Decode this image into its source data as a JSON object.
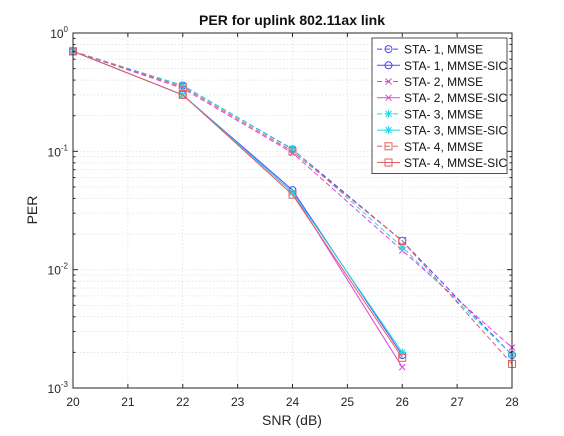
{
  "chart_data": {
    "type": "line",
    "title": "PER for uplink 802.11ax link",
    "xlabel": "SNR (dB)",
    "ylabel": "PER",
    "xlim": [
      20,
      28
    ],
    "ylim": [
      0.001,
      1
    ],
    "yscale": "log",
    "grid": true,
    "legend_position": "top-right",
    "x_ticks": [
      "20",
      "21",
      "22",
      "23",
      "24",
      "25",
      "26",
      "27",
      "28"
    ],
    "y_ticks": [
      {
        "value": 0.001,
        "base": "10",
        "exp": "-3"
      },
      {
        "value": 0.01,
        "base": "10",
        "exp": "-2"
      },
      {
        "value": 0.1,
        "base": "10",
        "exp": "-1"
      },
      {
        "value": 1,
        "base": "10",
        "exp": "0"
      }
    ],
    "series": [
      {
        "name": "STA- 1, MMSE",
        "color": "#4a4af0",
        "dash": "dashed",
        "marker": "circle",
        "x": [
          20,
          22,
          24,
          26,
          28
        ],
        "y": [
          0.7,
          0.36,
          0.104,
          0.0175,
          0.0019
        ]
      },
      {
        "name": "STA- 1, MMSE-SIC",
        "color": "#4a4af0",
        "dash": "solid",
        "marker": "circle",
        "x": [
          20,
          22,
          24,
          26
        ],
        "y": [
          0.7,
          0.3,
          0.047,
          0.0019
        ]
      },
      {
        "name": "STA- 2, MMSE",
        "color": "#e040e0",
        "dash": "dashed",
        "marker": "x",
        "x": [
          20,
          22,
          24,
          26,
          28
        ],
        "y": [
          0.7,
          0.34,
          0.097,
          0.0145,
          0.0022
        ]
      },
      {
        "name": "STA- 2, MMSE-SIC",
        "color": "#e040e0",
        "dash": "solid",
        "marker": "x",
        "x": [
          20,
          22,
          24,
          26
        ],
        "y": [
          0.7,
          0.3,
          0.045,
          0.0015
        ]
      },
      {
        "name": "STA- 3, MMSE",
        "color": "#22d8e8",
        "dash": "dashed",
        "marker": "star",
        "x": [
          20,
          22,
          24,
          26,
          28
        ],
        "y": [
          0.7,
          0.36,
          0.105,
          0.0155,
          0.0019
        ]
      },
      {
        "name": "STA- 3, MMSE-SIC",
        "color": "#22d8e8",
        "dash": "solid",
        "marker": "star",
        "x": [
          20,
          22,
          24,
          26
        ],
        "y": [
          0.7,
          0.3,
          0.045,
          0.002
        ]
      },
      {
        "name": "STA- 4, MMSE",
        "color": "#e06060",
        "dash": "dashed",
        "marker": "square",
        "x": [
          20,
          22,
          24,
          26,
          28
        ],
        "y": [
          0.7,
          0.35,
          0.1,
          0.0175,
          0.0016
        ]
      },
      {
        "name": "STA- 4, MMSE-SIC",
        "color": "#e06060",
        "dash": "solid",
        "marker": "square",
        "x": [
          20,
          22,
          24,
          26
        ],
        "y": [
          0.7,
          0.3,
          0.043,
          0.0018
        ]
      }
    ]
  }
}
